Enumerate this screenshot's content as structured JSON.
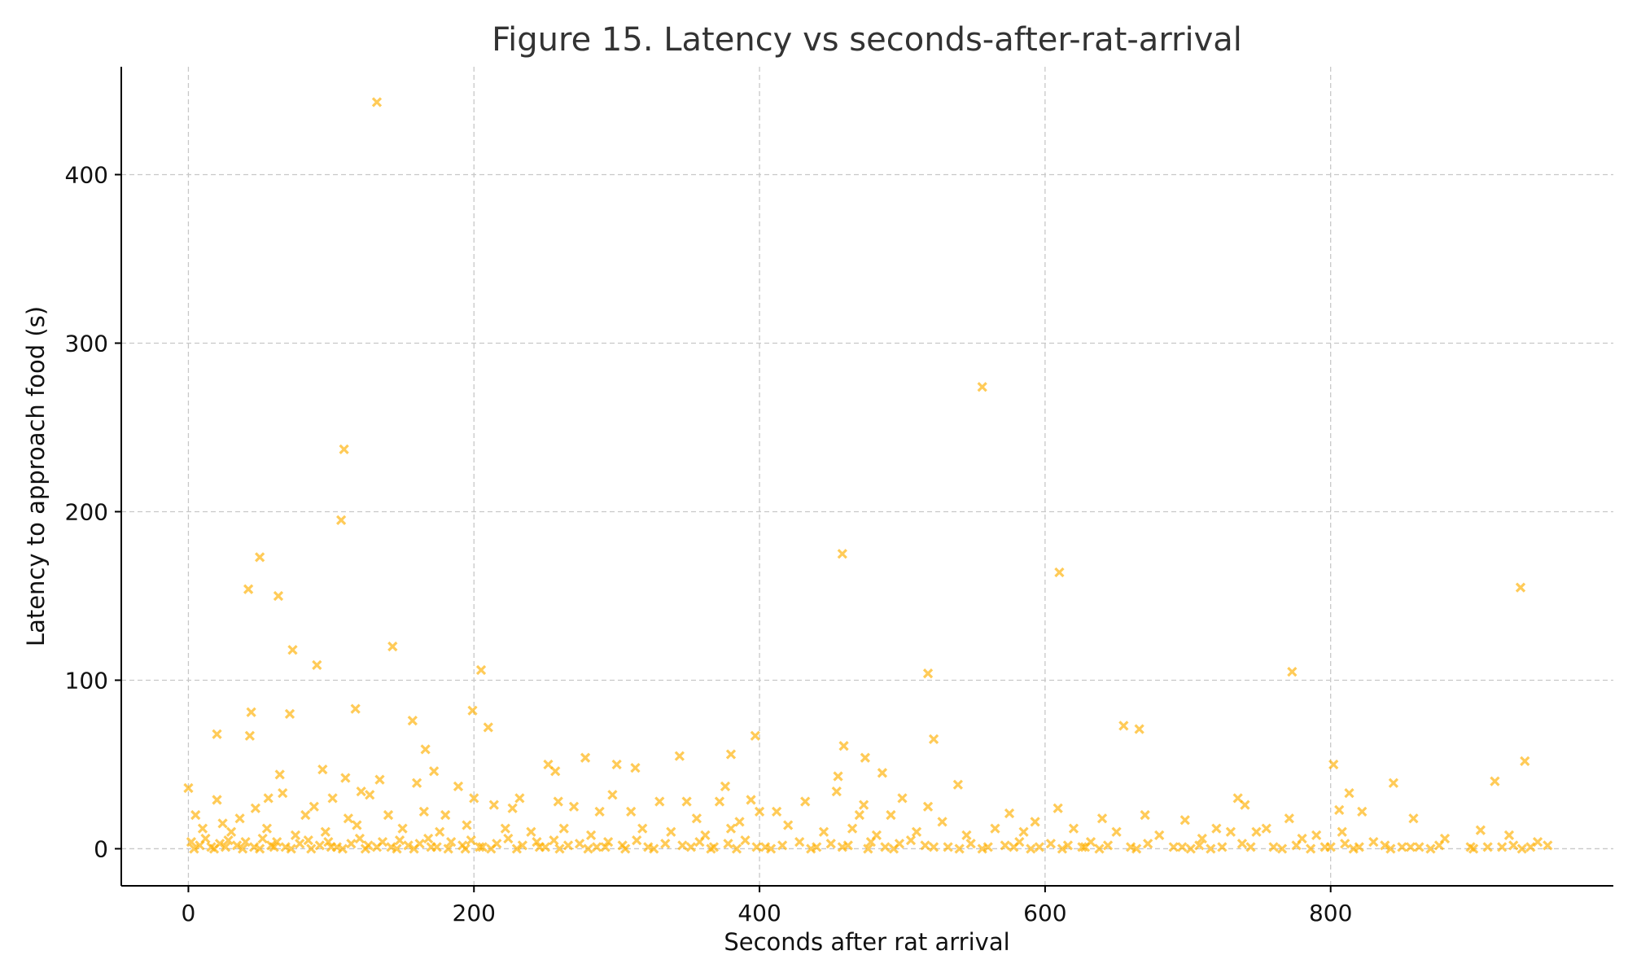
{
  "chart_data": {
    "type": "scatter",
    "title": "Figure 15. Latency vs seconds-after-rat-arrival",
    "xlabel": "Seconds after rat arrival",
    "ylabel": "Latency to approach food (s)",
    "xlim": [
      -47,
      998
    ],
    "ylim": [
      -22,
      464
    ],
    "xticks": [
      0,
      200,
      400,
      600,
      800
    ],
    "yticks": [
      0,
      100,
      200,
      300,
      400
    ],
    "grid": true,
    "marker": "x",
    "color": "#FFB000",
    "alpha": 0.65,
    "series": [
      {
        "name": "Latency",
        "points": [
          [
            132,
            443
          ],
          [
            556,
            274
          ],
          [
            109,
            237
          ],
          [
            107,
            195
          ],
          [
            458,
            175
          ],
          [
            50,
            173
          ],
          [
            610,
            164
          ],
          [
            42,
            154
          ],
          [
            63,
            150
          ],
          [
            933,
            155
          ],
          [
            143,
            120
          ],
          [
            73,
            118
          ],
          [
            90,
            109
          ],
          [
            205,
            106
          ],
          [
            518,
            104
          ],
          [
            773,
            105
          ],
          [
            117,
            83
          ],
          [
            44,
            81
          ],
          [
            71,
            80
          ],
          [
            199,
            82
          ],
          [
            157,
            76
          ],
          [
            210,
            72
          ],
          [
            655,
            73
          ],
          [
            666,
            71
          ],
          [
            20,
            68
          ],
          [
            43,
            67
          ],
          [
            522,
            65
          ],
          [
            166,
            59
          ],
          [
            397,
            67
          ],
          [
            459,
            61
          ],
          [
            474,
            54
          ],
          [
            344,
            55
          ],
          [
            380,
            56
          ],
          [
            278,
            54
          ],
          [
            936,
            52
          ],
          [
            252,
            50
          ],
          [
            300,
            50
          ],
          [
            802,
            50
          ],
          [
            313,
            48
          ],
          [
            257,
            46
          ],
          [
            94,
            47
          ],
          [
            172,
            46
          ],
          [
            486,
            45
          ],
          [
            64,
            44
          ],
          [
            455,
            43
          ],
          [
            110,
            42
          ],
          [
            134,
            41
          ],
          [
            844,
            39
          ],
          [
            915,
            40
          ],
          [
            160,
            39
          ],
          [
            539,
            38
          ],
          [
            189,
            37
          ],
          [
            0,
            36
          ],
          [
            376,
            37
          ],
          [
            454,
            34
          ],
          [
            66,
            33
          ],
          [
            121,
            34
          ],
          [
            330,
            28
          ],
          [
            372,
            28
          ],
          [
            297,
            32
          ],
          [
            400,
            22
          ],
          [
            735,
            30
          ],
          [
            20,
            29
          ],
          [
            56,
            30
          ],
          [
            101,
            30
          ],
          [
            127,
            32
          ],
          [
            200,
            30
          ],
          [
            232,
            30
          ],
          [
            259,
            28
          ],
          [
            349,
            28
          ],
          [
            394,
            29
          ],
          [
            432,
            28
          ],
          [
            473,
            26
          ],
          [
            500,
            30
          ],
          [
            518,
            25
          ],
          [
            609,
            24
          ],
          [
            670,
            20
          ],
          [
            740,
            26
          ],
          [
            813,
            33
          ],
          [
            822,
            22
          ],
          [
            5,
            20
          ],
          [
            24,
            15
          ],
          [
            36,
            18
          ],
          [
            47,
            24
          ],
          [
            82,
            20
          ],
          [
            88,
            25
          ],
          [
            112,
            18
          ],
          [
            140,
            20
          ],
          [
            165,
            22
          ],
          [
            180,
            20
          ],
          [
            214,
            26
          ],
          [
            227,
            24
          ],
          [
            270,
            25
          ],
          [
            288,
            22
          ],
          [
            310,
            22
          ],
          [
            356,
            18
          ],
          [
            386,
            16
          ],
          [
            412,
            22
          ],
          [
            470,
            20
          ],
          [
            492,
            20
          ],
          [
            528,
            16
          ],
          [
            575,
            21
          ],
          [
            593,
            16
          ],
          [
            640,
            18
          ],
          [
            698,
            17
          ],
          [
            730,
            10
          ],
          [
            755,
            12
          ],
          [
            771,
            18
          ],
          [
            790,
            8
          ],
          [
            806,
            23
          ],
          [
            858,
            18
          ],
          [
            905,
            11
          ],
          [
            925,
            8
          ],
          [
            10,
            12
          ],
          [
            30,
            10
          ],
          [
            55,
            12
          ],
          [
            75,
            8
          ],
          [
            96,
            10
          ],
          [
            118,
            14
          ],
          [
            150,
            12
          ],
          [
            176,
            10
          ],
          [
            195,
            14
          ],
          [
            222,
            12
          ],
          [
            240,
            10
          ],
          [
            263,
            12
          ],
          [
            282,
            8
          ],
          [
            318,
            12
          ],
          [
            338,
            10
          ],
          [
            362,
            8
          ],
          [
            380,
            12
          ],
          [
            420,
            14
          ],
          [
            445,
            10
          ],
          [
            465,
            12
          ],
          [
            482,
            8
          ],
          [
            510,
            10
          ],
          [
            545,
            8
          ],
          [
            565,
            12
          ],
          [
            585,
            10
          ],
          [
            620,
            12
          ],
          [
            650,
            10
          ],
          [
            680,
            8
          ],
          [
            710,
            6
          ],
          [
            720,
            12
          ],
          [
            748,
            10
          ],
          [
            780,
            6
          ],
          [
            808,
            10
          ],
          [
            830,
            4
          ],
          [
            880,
            6
          ],
          [
            945,
            4
          ],
          [
            2,
            4
          ],
          [
            8,
            2
          ],
          [
            12,
            6
          ],
          [
            16,
            1
          ],
          [
            22,
            3
          ],
          [
            28,
            5
          ],
          [
            34,
            2
          ],
          [
            40,
            4
          ],
          [
            46,
            1
          ],
          [
            52,
            6
          ],
          [
            58,
            2
          ],
          [
            62,
            4
          ],
          [
            68,
            1
          ],
          [
            78,
            3
          ],
          [
            84,
            5
          ],
          [
            92,
            2
          ],
          [
            98,
            4
          ],
          [
            104,
            1
          ],
          [
            114,
            3
          ],
          [
            120,
            6
          ],
          [
            126,
            2
          ],
          [
            136,
            4
          ],
          [
            142,
            1
          ],
          [
            148,
            5
          ],
          [
            154,
            2
          ],
          [
            162,
            3
          ],
          [
            168,
            6
          ],
          [
            174,
            1
          ],
          [
            184,
            4
          ],
          [
            192,
            2
          ],
          [
            198,
            5
          ],
          [
            206,
            1
          ],
          [
            216,
            3
          ],
          [
            224,
            6
          ],
          [
            234,
            2
          ],
          [
            244,
            4
          ],
          [
            250,
            1
          ],
          [
            256,
            5
          ],
          [
            266,
            2
          ],
          [
            274,
            3
          ],
          [
            286,
            1
          ],
          [
            294,
            4
          ],
          [
            304,
            2
          ],
          [
            314,
            5
          ],
          [
            322,
            1
          ],
          [
            334,
            3
          ],
          [
            346,
            2
          ],
          [
            358,
            4
          ],
          [
            368,
            1
          ],
          [
            378,
            3
          ],
          [
            390,
            5
          ],
          [
            404,
            1
          ],
          [
            416,
            2
          ],
          [
            428,
            4
          ],
          [
            440,
            1
          ],
          [
            450,
            3
          ],
          [
            462,
            2
          ],
          [
            478,
            4
          ],
          [
            488,
            1
          ],
          [
            498,
            3
          ],
          [
            506,
            5
          ],
          [
            516,
            2
          ],
          [
            532,
            1
          ],
          [
            548,
            3
          ],
          [
            560,
            1
          ],
          [
            572,
            2
          ],
          [
            582,
            4
          ],
          [
            596,
            1
          ],
          [
            604,
            3
          ],
          [
            616,
            2
          ],
          [
            626,
            1
          ],
          [
            632,
            4
          ],
          [
            644,
            2
          ],
          [
            660,
            1
          ],
          [
            672,
            3
          ],
          [
            696,
            1
          ],
          [
            708,
            2
          ],
          [
            724,
            1
          ],
          [
            738,
            3
          ],
          [
            760,
            1
          ],
          [
            776,
            2
          ],
          [
            796,
            1
          ],
          [
            810,
            3
          ],
          [
            820,
            1
          ],
          [
            838,
            2
          ],
          [
            850,
            1
          ],
          [
            862,
            1
          ],
          [
            876,
            2
          ],
          [
            898,
            1
          ],
          [
            910,
            1
          ],
          [
            928,
            2
          ],
          [
            940,
            1
          ],
          [
            952,
            2
          ],
          [
            4,
            0
          ],
          [
            18,
            0
          ],
          [
            26,
            1
          ],
          [
            38,
            0
          ],
          [
            50,
            0
          ],
          [
            60,
            1
          ],
          [
            72,
            0
          ],
          [
            86,
            0
          ],
          [
            100,
            1
          ],
          [
            108,
            0
          ],
          [
            124,
            0
          ],
          [
            132,
            1
          ],
          [
            146,
            0
          ],
          [
            158,
            0
          ],
          [
            170,
            1
          ],
          [
            182,
            0
          ],
          [
            194,
            0
          ],
          [
            204,
            1
          ],
          [
            212,
            0
          ],
          [
            230,
            0
          ],
          [
            246,
            1
          ],
          [
            260,
            0
          ],
          [
            280,
            0
          ],
          [
            292,
            1
          ],
          [
            306,
            0
          ],
          [
            326,
            0
          ],
          [
            352,
            1
          ],
          [
            366,
            0
          ],
          [
            384,
            0
          ],
          [
            398,
            1
          ],
          [
            408,
            0
          ],
          [
            436,
            0
          ],
          [
            458,
            1
          ],
          [
            476,
            0
          ],
          [
            494,
            0
          ],
          [
            522,
            1
          ],
          [
            540,
            0
          ],
          [
            556,
            0
          ],
          [
            578,
            1
          ],
          [
            590,
            0
          ],
          [
            612,
            0
          ],
          [
            628,
            1
          ],
          [
            638,
            0
          ],
          [
            664,
            0
          ],
          [
            690,
            1
          ],
          [
            702,
            0
          ],
          [
            716,
            0
          ],
          [
            744,
            1
          ],
          [
            766,
            0
          ],
          [
            786,
            0
          ],
          [
            800,
            1
          ],
          [
            816,
            0
          ],
          [
            842,
            0
          ],
          [
            856,
            1
          ],
          [
            870,
            0
          ],
          [
            900,
            0
          ],
          [
            920,
            1
          ],
          [
            934,
            0
          ]
        ]
      }
    ]
  }
}
